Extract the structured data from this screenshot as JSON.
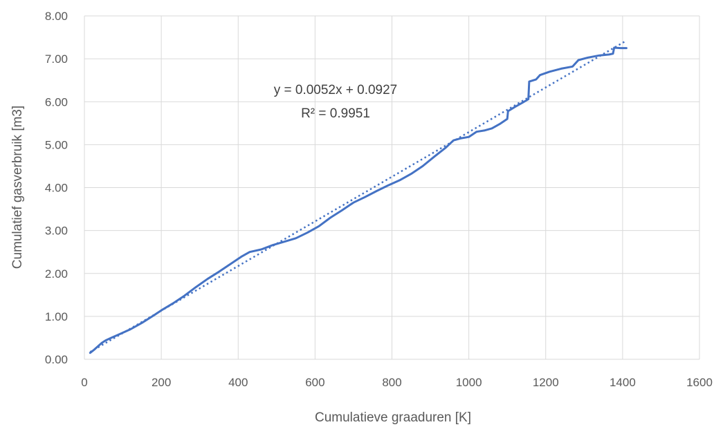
{
  "chart_data": {
    "type": "line",
    "xlabel": "Cumulatieve graaduren [K]",
    "ylabel": "Cumulatief gasverbruik [m3]",
    "xlim": [
      0,
      1600
    ],
    "ylim": [
      0,
      8
    ],
    "x_ticks": [
      "0",
      "200",
      "400",
      "600",
      "800",
      "1000",
      "1200",
      "1400",
      "1600"
    ],
    "y_ticks": [
      "0.00",
      "1.00",
      "2.00",
      "3.00",
      "4.00",
      "5.00",
      "6.00",
      "7.00",
      "8.00"
    ],
    "grid": true,
    "legend": "none",
    "series": [
      {
        "color": "#4472c4",
        "style": "solid",
        "points": [
          [
            15,
            0.15
          ],
          [
            25,
            0.22
          ],
          [
            35,
            0.3
          ],
          [
            45,
            0.38
          ],
          [
            55,
            0.44
          ],
          [
            70,
            0.5
          ],
          [
            90,
            0.58
          ],
          [
            120,
            0.7
          ],
          [
            150,
            0.85
          ],
          [
            180,
            1.02
          ],
          [
            200,
            1.14
          ],
          [
            230,
            1.3
          ],
          [
            260,
            1.48
          ],
          [
            290,
            1.68
          ],
          [
            320,
            1.87
          ],
          [
            350,
            2.04
          ],
          [
            380,
            2.22
          ],
          [
            410,
            2.4
          ],
          [
            430,
            2.5
          ],
          [
            460,
            2.56
          ],
          [
            490,
            2.66
          ],
          [
            520,
            2.74
          ],
          [
            550,
            2.82
          ],
          [
            580,
            2.95
          ],
          [
            610,
            3.1
          ],
          [
            640,
            3.3
          ],
          [
            670,
            3.47
          ],
          [
            700,
            3.65
          ],
          [
            730,
            3.78
          ],
          [
            760,
            3.92
          ],
          [
            790,
            4.05
          ],
          [
            820,
            4.17
          ],
          [
            850,
            4.32
          ],
          [
            880,
            4.5
          ],
          [
            910,
            4.72
          ],
          [
            940,
            4.93
          ],
          [
            960,
            5.1
          ],
          [
            980,
            5.15
          ],
          [
            1000,
            5.18
          ],
          [
            1020,
            5.3
          ],
          [
            1040,
            5.33
          ],
          [
            1060,
            5.38
          ],
          [
            1080,
            5.48
          ],
          [
            1100,
            5.6
          ],
          [
            1102,
            5.78
          ],
          [
            1120,
            5.88
          ],
          [
            1140,
            5.98
          ],
          [
            1155,
            6.06
          ],
          [
            1157,
            6.47
          ],
          [
            1175,
            6.52
          ],
          [
            1185,
            6.62
          ],
          [
            1210,
            6.7
          ],
          [
            1240,
            6.77
          ],
          [
            1270,
            6.82
          ],
          [
            1285,
            6.97
          ],
          [
            1310,
            7.03
          ],
          [
            1340,
            7.08
          ],
          [
            1365,
            7.1
          ],
          [
            1375,
            7.12
          ],
          [
            1378,
            7.26
          ],
          [
            1395,
            7.25
          ],
          [
            1410,
            7.25
          ]
        ]
      },
      {
        "color": "#4472c4",
        "style": "dotted",
        "trendline": {
          "slope": 0.0052,
          "intercept": 0.0927,
          "x_range": [
            15,
            1405
          ]
        }
      }
    ],
    "annotations": [
      "y = 0.0052x + 0.0927",
      "R² = 0.9951"
    ],
    "colors": {
      "series": "#4472c4",
      "grid": "#d9d9d9",
      "text": "#595959"
    }
  }
}
